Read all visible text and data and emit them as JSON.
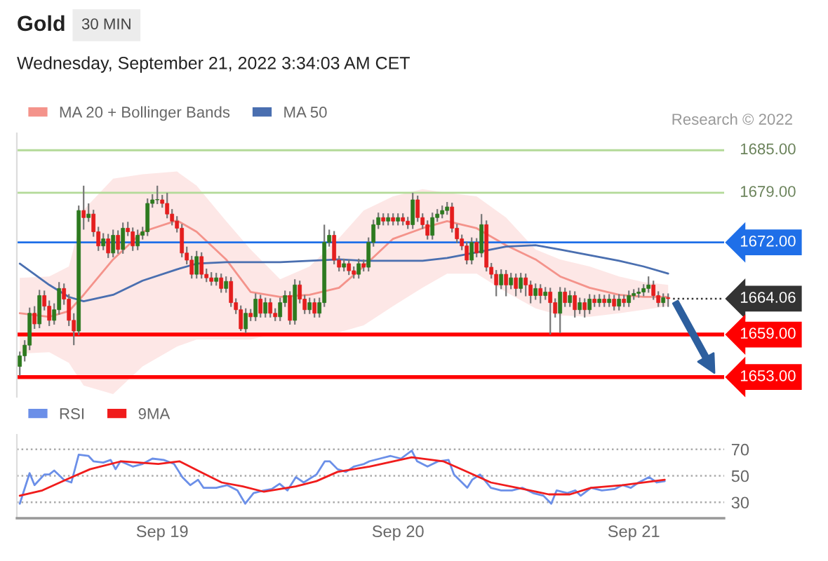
{
  "chart_data": [
    {
      "type": "candlestick",
      "title": "Gold",
      "subtitle": "Wednesday, September 21, 2022 3:34:03 AM CET",
      "annotations": [
        "30 MIN",
        "Research © 2022"
      ],
      "x": [
        "2022-09-18T09:30",
        "2022-09-18T10:00",
        "2022-09-18T10:30",
        "2022-09-18T11:00",
        "2022-09-18T11:30",
        "2022-09-18T12:00",
        "2022-09-18T12:30",
        "2022-09-18T13:00",
        "2022-09-18T13:30",
        "2022-09-18T14:00",
        "2022-09-18T14:30",
        "2022-09-18T15:00",
        "2022-09-18T15:30",
        "2022-09-18T16:00",
        "2022-09-18T16:30",
        "2022-09-18T17:00",
        "2022-09-18T17:30",
        "2022-09-18T18:00",
        "2022-09-18T18:30",
        "2022-09-18T19:00",
        "2022-09-18T19:30",
        "2022-09-18T20:00",
        "2022-09-18T20:30",
        "2022-09-18T21:00",
        "2022-09-18T21:30",
        "2022-09-18T22:00",
        "2022-09-18T22:30",
        "2022-09-18T23:00",
        "2022-09-18T23:30",
        "2022-09-19T00:00",
        "2022-09-19T00:30",
        "2022-09-19T01:00",
        "2022-09-19T01:30",
        "2022-09-19T02:00",
        "2022-09-19T02:30",
        "2022-09-19T03:00",
        "2022-09-19T03:30",
        "2022-09-19T04:00",
        "2022-09-19T04:30",
        "2022-09-19T05:00",
        "2022-09-19T05:30",
        "2022-09-19T06:00",
        "2022-09-19T06:30",
        "2022-09-19T07:00",
        "2022-09-19T07:30",
        "2022-09-19T08:00",
        "2022-09-19T08:30",
        "2022-09-19T09:00",
        "2022-09-19T09:30",
        "2022-09-19T10:00",
        "2022-09-19T10:30",
        "2022-09-19T11:00",
        "2022-09-19T11:30",
        "2022-09-19T12:00",
        "2022-09-19T12:30",
        "2022-09-19T13:00",
        "2022-09-19T13:30",
        "2022-09-19T14:00",
        "2022-09-19T14:30",
        "2022-09-19T15:00",
        "2022-09-19T15:30",
        "2022-09-19T16:00",
        "2022-09-19T16:30",
        "2022-09-19T17:00",
        "2022-09-19T17:30",
        "2022-09-19T18:00",
        "2022-09-19T18:30",
        "2022-09-19T19:00",
        "2022-09-19T19:30",
        "2022-09-19T20:00",
        "2022-09-19T20:30",
        "2022-09-19T21:00",
        "2022-09-19T21:30",
        "2022-09-19T22:00",
        "2022-09-19T22:30",
        "2022-09-19T23:00",
        "2022-09-19T23:30",
        "2022-09-20T00:00",
        "2022-09-20T00:30",
        "2022-09-20T01:00",
        "2022-09-20T01:30",
        "2022-09-20T02:00",
        "2022-09-20T02:30",
        "2022-09-20T03:00",
        "2022-09-20T03:30",
        "2022-09-20T04:00",
        "2022-09-20T04:30",
        "2022-09-20T05:00",
        "2022-09-20T05:30",
        "2022-09-20T06:00",
        "2022-09-20T06:30",
        "2022-09-20T07:00",
        "2022-09-20T07:30",
        "2022-09-20T08:00",
        "2022-09-20T08:30",
        "2022-09-20T09:00",
        "2022-09-20T09:30",
        "2022-09-20T10:00",
        "2022-09-20T10:30",
        "2022-09-20T11:00",
        "2022-09-20T11:30",
        "2022-09-20T12:00",
        "2022-09-20T12:30",
        "2022-09-20T13:00",
        "2022-09-20T13:30",
        "2022-09-20T14:00",
        "2022-09-20T14:30",
        "2022-09-20T15:00",
        "2022-09-20T15:30",
        "2022-09-20T16:00",
        "2022-09-20T16:30",
        "2022-09-20T17:00",
        "2022-09-20T17:30",
        "2022-09-20T18:00",
        "2022-09-20T18:30",
        "2022-09-20T19:00",
        "2022-09-20T19:30",
        "2022-09-20T20:00",
        "2022-09-20T20:30",
        "2022-09-20T21:00",
        "2022-09-20T21:30",
        "2022-09-20T22:00",
        "2022-09-20T22:30",
        "2022-09-20T23:00",
        "2022-09-20T23:30",
        "2022-09-21T00:00",
        "2022-09-21T00:30",
        "2022-09-21T01:00",
        "2022-09-21T01:30",
        "2022-09-21T02:00",
        "2022-09-21T02:30",
        "2022-09-21T03:00",
        "2022-09-21T03:30"
      ],
      "ohlc": [
        [
          1654.5,
          1656.6,
          1653.2,
          1656
        ],
        [
          1656,
          1658.2,
          1655.2,
          1657.5
        ],
        [
          1657.5,
          1662.8,
          1656.8,
          1662
        ],
        [
          1662,
          1663,
          1659.8,
          1660.5
        ],
        [
          1660.5,
          1665.3,
          1659.9,
          1664.5
        ],
        [
          1664.5,
          1665.2,
          1662.4,
          1663
        ],
        [
          1663,
          1663.8,
          1660.2,
          1661
        ],
        [
          1661,
          1663.4,
          1660.4,
          1662.5
        ],
        [
          1662.5,
          1666.4,
          1661.8,
          1665.5
        ],
        [
          1665.5,
          1666.2,
          1663.2,
          1664
        ],
        [
          1664,
          1664.7,
          1660.2,
          1661
        ],
        [
          1661,
          1662,
          1657.5,
          1659.5
        ],
        [
          1659.5,
          1677.2,
          1658.9,
          1676.5
        ],
        [
          1676.5,
          1680,
          1673.8,
          1675.5
        ],
        [
          1675.5,
          1677.5,
          1674.9,
          1676
        ],
        [
          1676,
          1676.6,
          1672.8,
          1673.5
        ],
        [
          1673.5,
          1674.2,
          1670.8,
          1671.5
        ],
        [
          1671.5,
          1673.3,
          1670.9,
          1672.5
        ],
        [
          1672.5,
          1673.2,
          1669.8,
          1670.5
        ],
        [
          1670.5,
          1673.8,
          1669.9,
          1673
        ],
        [
          1673,
          1673.7,
          1670.4,
          1671
        ],
        [
          1671,
          1674.8,
          1670.4,
          1674
        ],
        [
          1674,
          1674.9,
          1672.9,
          1673.5
        ],
        [
          1673.5,
          1674.1,
          1670.8,
          1671.5
        ],
        [
          1671.5,
          1673.8,
          1670.9,
          1673
        ],
        [
          1673,
          1674.2,
          1672.4,
          1673.5
        ],
        [
          1673.5,
          1678.2,
          1672.9,
          1677.5
        ],
        [
          1677.5,
          1678.8,
          1676.9,
          1678
        ],
        [
          1678,
          1680,
          1677.4,
          1678
        ],
        [
          1678,
          1678.7,
          1676.9,
          1677.5
        ],
        [
          1677.5,
          1679,
          1675.4,
          1676
        ],
        [
          1676,
          1676.7,
          1674.4,
          1675
        ],
        [
          1675,
          1675.7,
          1673.4,
          1674
        ],
        [
          1674,
          1674.6,
          1669.9,
          1670.5
        ],
        [
          1670.5,
          1671.4,
          1668.9,
          1669.5
        ],
        [
          1669.5,
          1670.1,
          1666.9,
          1667.5
        ],
        [
          1667.5,
          1670.8,
          1666.9,
          1670
        ],
        [
          1670,
          1670.6,
          1666.9,
          1667.5
        ],
        [
          1667.5,
          1668.3,
          1666.4,
          1667
        ],
        [
          1667,
          1667.8,
          1665.9,
          1666.5
        ],
        [
          1666.5,
          1667.7,
          1665.9,
          1667
        ],
        [
          1667,
          1667.6,
          1664.9,
          1665.5
        ],
        [
          1665.5,
          1667.2,
          1664.9,
          1666.5
        ],
        [
          1666.5,
          1667.1,
          1662.9,
          1663.5
        ],
        [
          1663.5,
          1664.1,
          1661.9,
          1662.5
        ],
        [
          1662.5,
          1663.1,
          1659.5,
          1659.8
        ],
        [
          1659.8,
          1662.7,
          1659.2,
          1662
        ],
        [
          1662,
          1662.6,
          1660.9,
          1661.5
        ],
        [
          1661.5,
          1664.8,
          1660.9,
          1664
        ],
        [
          1664,
          1664.6,
          1661.4,
          1662
        ],
        [
          1662,
          1664.2,
          1661.4,
          1663.5
        ],
        [
          1663.5,
          1664.1,
          1661.4,
          1662
        ],
        [
          1662,
          1662.7,
          1660.9,
          1661.5
        ],
        [
          1661.5,
          1664.2,
          1660.9,
          1663.5
        ],
        [
          1663.5,
          1665.2,
          1662.9,
          1664.5
        ],
        [
          1664.5,
          1665.1,
          1660.4,
          1661
        ],
        [
          1661,
          1666.8,
          1660.4,
          1666
        ],
        [
          1666,
          1666.6,
          1663.4,
          1664
        ],
        [
          1664,
          1664.6,
          1661.9,
          1662.5
        ],
        [
          1662.5,
          1664.2,
          1661.9,
          1663.5
        ],
        [
          1663.5,
          1664.1,
          1661.4,
          1662
        ],
        [
          1662,
          1664.2,
          1661.4,
          1663.5
        ],
        [
          1663.5,
          1674.5,
          1662.9,
          1672
        ],
        [
          1672,
          1673.8,
          1671.4,
          1673
        ],
        [
          1673,
          1673.6,
          1668.9,
          1669.5
        ],
        [
          1669.5,
          1670.1,
          1667.9,
          1668.5
        ],
        [
          1668.5,
          1669.7,
          1667.9,
          1669
        ],
        [
          1669,
          1669.6,
          1667.4,
          1668
        ],
        [
          1668,
          1668.6,
          1666.9,
          1667.5
        ],
        [
          1667.5,
          1669.7,
          1666.9,
          1669
        ],
        [
          1669,
          1669.6,
          1667.9,
          1668.5
        ],
        [
          1668.5,
          1672.7,
          1667.9,
          1672
        ],
        [
          1672,
          1675.2,
          1671.4,
          1674.5
        ],
        [
          1674.5,
          1676.2,
          1673.9,
          1675.5
        ],
        [
          1675.5,
          1676.1,
          1674.4,
          1675
        ],
        [
          1675,
          1676.1,
          1674.4,
          1675.5
        ],
        [
          1675.5,
          1676.1,
          1674.4,
          1675
        ],
        [
          1675,
          1676.1,
          1674.4,
          1675.5
        ],
        [
          1675.5,
          1676.1,
          1674.4,
          1675
        ],
        [
          1675,
          1675.6,
          1673.9,
          1674.5
        ],
        [
          1674.5,
          1679,
          1673.9,
          1678
        ],
        [
          1678,
          1678.6,
          1674.9,
          1675.5
        ],
        [
          1675.5,
          1676.1,
          1673.9,
          1674.5
        ],
        [
          1674.5,
          1675.1,
          1672.4,
          1673
        ],
        [
          1673,
          1676.2,
          1672.4,
          1675.5
        ],
        [
          1675.5,
          1676.7,
          1674.9,
          1676
        ],
        [
          1676,
          1677.2,
          1675.4,
          1676.5
        ],
        [
          1676.5,
          1677.7,
          1675.9,
          1677
        ],
        [
          1677,
          1677.6,
          1673.4,
          1674
        ],
        [
          1674,
          1674.6,
          1671.9,
          1672.5
        ],
        [
          1672.5,
          1673.1,
          1670.9,
          1671.5
        ],
        [
          1671.5,
          1672.1,
          1668.9,
          1669.5
        ],
        [
          1669.5,
          1672.7,
          1668.9,
          1672
        ],
        [
          1672,
          1672.6,
          1669.9,
          1670.5
        ],
        [
          1670.5,
          1676,
          1669.9,
          1674.5
        ],
        [
          1674.5,
          1675.1,
          1667.9,
          1668.5
        ],
        [
          1668.5,
          1669.1,
          1666.9,
          1667.5
        ],
        [
          1667.5,
          1668.1,
          1664.4,
          1666
        ],
        [
          1666,
          1668.2,
          1665.4,
          1667.5
        ],
        [
          1667.5,
          1668.1,
          1664.4,
          1666
        ],
        [
          1666,
          1667.7,
          1665.4,
          1667
        ],
        [
          1667,
          1667.6,
          1664.4,
          1665.5
        ],
        [
          1665.5,
          1667.7,
          1664.9,
          1667
        ],
        [
          1667,
          1667.6,
          1664.4,
          1666
        ],
        [
          1666,
          1666.6,
          1663.4,
          1664.5
        ],
        [
          1664.5,
          1666.2,
          1663.9,
          1665.5
        ],
        [
          1665.5,
          1666.1,
          1663.4,
          1664.5
        ],
        [
          1664.5,
          1665.7,
          1663.9,
          1665
        ],
        [
          1665,
          1665.6,
          1659,
          1663.5
        ],
        [
          1663.5,
          1664.1,
          1661.4,
          1662
        ],
        [
          1662,
          1665.7,
          1659.2,
          1665
        ],
        [
          1665,
          1665.6,
          1662.9,
          1663.5
        ],
        [
          1663.5,
          1665.2,
          1662.9,
          1664.5
        ],
        [
          1664.5,
          1665.1,
          1661.4,
          1662.5
        ],
        [
          1662.5,
          1664.2,
          1661.9,
          1663.5
        ],
        [
          1663.5,
          1664.1,
          1661.4,
          1662.5
        ],
        [
          1662.5,
          1664.7,
          1661.9,
          1664
        ],
        [
          1664,
          1664.6,
          1662.9,
          1663.5
        ],
        [
          1663.5,
          1664.7,
          1662.9,
          1664
        ],
        [
          1664,
          1664.6,
          1662.9,
          1663.5
        ],
        [
          1663.5,
          1664.7,
          1662.9,
          1664
        ],
        [
          1664,
          1664.6,
          1662.4,
          1663
        ],
        [
          1663,
          1664.7,
          1662.4,
          1664
        ],
        [
          1664,
          1664.6,
          1662.9,
          1663.5
        ],
        [
          1663.5,
          1665.2,
          1662.9,
          1664.5
        ],
        [
          1664.5,
          1665.4,
          1663.9,
          1664.8
        ],
        [
          1664.8,
          1665.6,
          1664.2,
          1665
        ],
        [
          1665,
          1666.1,
          1664.4,
          1665.5
        ],
        [
          1665.5,
          1667.2,
          1664.9,
          1666
        ],
        [
          1666,
          1666.6,
          1663.9,
          1664.5
        ],
        [
          1664.5,
          1665.1,
          1662.9,
          1663.5
        ],
        [
          1663.5,
          1664.8,
          1662.9,
          1664.2
        ],
        [
          1664.2,
          1664.8,
          1662.9,
          1664.06
        ]
      ],
      "series": [
        {
          "type": "line",
          "name": "MA 20 + Bollinger Bands",
          "color": "#f4938b",
          "x": [
            "2022-09-18T09:30",
            "2022-09-18T12:30",
            "2022-09-18T14:30",
            "2022-09-18T16:00",
            "2022-09-18T19:00",
            "2022-09-18T22:00",
            "2022-09-19T01:30",
            "2022-09-19T03:30",
            "2022-09-19T06:30",
            "2022-09-19T09:00",
            "2022-09-19T12:00",
            "2022-09-19T15:00",
            "2022-09-19T18:00",
            "2022-09-19T20:30",
            "2022-09-19T23:30",
            "2022-09-20T02:30",
            "2022-09-20T05:00",
            "2022-09-20T08:00",
            "2022-09-20T11:00",
            "2022-09-20T14:00",
            "2022-09-20T16:30",
            "2022-09-20T19:30",
            "2022-09-20T22:30",
            "2022-09-21T01:00",
            "2022-09-21T03:30"
          ],
          "values": [
            1662,
            1661.5,
            1662.3,
            1664.6,
            1669.6,
            1673.5,
            1675.1,
            1673.5,
            1669.6,
            1665,
            1664.3,
            1664.6,
            1665.6,
            1668.6,
            1672.5,
            1674,
            1675,
            1674,
            1671.6,
            1669.6,
            1667.2,
            1665.6,
            1664.6,
            1664.3,
            1664.3
          ],
          "upper": [
            1667,
            1667.2,
            1668.6,
            1676.6,
            1681,
            1681.6,
            1682,
            1680,
            1675,
            1671,
            1666.8,
            1668.6,
            1672.6,
            1676.5,
            1678.5,
            1679.5,
            1679,
            1678.5,
            1675.5,
            1671,
            1669.6,
            1668.6,
            1667.2,
            1666.4,
            1666
          ],
          "lower": [
            1656.3,
            1656.5,
            1655,
            1651.8,
            1650.6,
            1654.5,
            1657.3,
            1658.3,
            1658.3,
            1658.3,
            1659.3,
            1659.3,
            1659.3,
            1660.3,
            1663,
            1665.6,
            1667.6,
            1667.6,
            1665,
            1662.7,
            1661.7,
            1661.5,
            1662,
            1662.5,
            1663
          ]
        },
        {
          "type": "line",
          "name": "MA 50",
          "color": "#4a6fb0",
          "x": [
            "2022-09-18T09:30",
            "2022-09-18T12:30",
            "2022-09-18T14:30",
            "2022-09-18T16:00",
            "2022-09-18T19:00",
            "2022-09-18T22:00",
            "2022-09-19T01:30",
            "2022-09-19T03:30",
            "2022-09-19T06:30",
            "2022-09-19T09:00",
            "2022-09-19T12:00",
            "2022-09-19T15:00",
            "2022-09-19T18:00",
            "2022-09-19T20:30",
            "2022-09-19T23:30",
            "2022-09-20T02:30",
            "2022-09-20T05:00",
            "2022-09-20T08:00",
            "2022-09-20T11:00",
            "2022-09-20T14:00",
            "2022-09-20T16:30",
            "2022-09-20T19:30",
            "2022-09-20T22:30",
            "2022-09-21T01:00",
            "2022-09-21T03:30"
          ],
          "values": [
            1669,
            1666,
            1664.3,
            1663.7,
            1664.6,
            1666.6,
            1668.2,
            1669,
            1669.2,
            1669.2,
            1669.2,
            1669.4,
            1669.6,
            1669.4,
            1669.4,
            1669.4,
            1669.8,
            1670.6,
            1671.4,
            1671.6,
            1671,
            1670.2,
            1669.4,
            1668.6,
            1667.6
          ]
        }
      ],
      "xlim": [
        "2022-09-18T09:12",
        "2022-09-21T09:12"
      ],
      "ylim": [
        1650.2,
        1687.4
      ],
      "grid": false,
      "legend": "top left",
      "ref_lines": [
        {
          "axis": "y",
          "value": 1685,
          "label": "1685.00",
          "color": "#b3da98",
          "line_style": "solid"
        },
        {
          "axis": "y",
          "value": 1679,
          "label": "1679.00",
          "color": "#b3da98",
          "line_style": "solid"
        },
        {
          "axis": "y",
          "value": 1672,
          "label": "1672.00",
          "color": "#1f6fe8",
          "line_style": "solid"
        },
        {
          "axis": "y",
          "value": 1664.06,
          "label": "1664.06",
          "color": "#333333",
          "line_style": "dotted"
        },
        {
          "axis": "y",
          "value": 1659,
          "label": "1659.00",
          "color": "#ff0000",
          "line_style": "solid"
        },
        {
          "axis": "y",
          "value": 1653,
          "label": "1653.00",
          "color": "#ff0000",
          "line_style": "solid"
        }
      ]
    },
    {
      "type": "line",
      "series": [
        {
          "name": "RSI",
          "color": "#6b8fe8",
          "x": [
            "2022-09-18T09:30",
            "2022-09-18T10:30",
            "2022-09-18T11:00",
            "2022-09-18T12:00",
            "2022-09-18T12:30",
            "2022-09-18T13:00",
            "2022-09-18T14:00",
            "2022-09-18T14:45",
            "2022-09-18T15:30",
            "2022-09-18T16:30",
            "2022-09-18T17:00",
            "2022-09-18T18:00",
            "2022-09-18T18:45",
            "2022-09-18T19:15",
            "2022-09-18T19:45",
            "2022-09-18T21:00",
            "2022-09-18T22:00",
            "2022-09-18T23:00",
            "2022-09-19T00:09",
            "2022-09-19T01:12",
            "2022-09-19T02:03",
            "2022-09-19T02:51",
            "2022-09-19T03:39",
            "2022-09-19T04:12",
            "2022-09-19T05:30",
            "2022-09-19T06:36",
            "2022-09-19T07:39",
            "2022-09-19T08:27",
            "2022-09-19T09:18",
            "2022-09-19T10:21",
            "2022-09-19T11:09",
            "2022-09-19T11:57",
            "2022-09-19T12:45",
            "2022-09-19T13:36",
            "2022-09-19T14:24",
            "2022-09-19T15:42",
            "2022-09-19T16:33",
            "2022-09-19T17:03",
            "2022-09-19T17:51",
            "2022-09-19T18:42",
            "2022-09-19T19:30",
            "2022-09-19T20:33",
            "2022-09-19T21:06",
            "2022-09-19T22:09",
            "2022-09-19T23:15",
            "2022-09-20T00:18",
            "2022-09-20T01:24",
            "2022-09-20T01:57",
            "2022-09-20T03:00",
            "2022-09-20T04:06",
            "2022-09-20T05:09",
            "2022-09-20T05:42",
            "2022-09-20T07:03",
            "2022-09-20T07:33",
            "2022-09-20T08:21",
            "2022-09-20T09:27",
            "2022-09-20T10:30",
            "2022-09-20T11:36",
            "2022-09-20T12:39",
            "2022-09-20T13:45",
            "2022-09-20T14:48",
            "2022-09-20T15:36",
            "2022-09-20T16:09",
            "2022-09-20T17:15",
            "2022-09-20T18:03",
            "2022-09-20T18:36",
            "2022-09-20T19:39",
            "2022-09-20T20:45",
            "2022-09-20T22:03",
            "2022-09-20T22:51",
            "2022-09-20T23:42",
            "2022-09-21T00:30",
            "2022-09-21T01:33",
            "2022-09-21T02:21",
            "2022-09-21T03:09"
          ],
          "values": [
            29,
            52,
            43,
            51,
            51,
            54,
            47,
            45,
            66,
            65,
            61,
            60,
            62,
            55,
            61,
            57,
            59,
            63,
            62,
            59,
            49,
            43,
            47,
            41,
            41,
            43,
            39,
            29,
            37,
            39,
            40,
            44,
            39,
            49,
            45,
            51,
            61,
            61,
            55,
            53,
            57,
            59,
            61,
            63,
            65,
            63,
            69,
            61,
            57,
            61,
            62,
            51,
            41,
            47,
            51,
            41,
            39,
            39,
            41,
            37,
            35,
            29,
            39,
            37,
            39,
            35,
            41,
            39,
            40,
            43,
            41,
            45,
            49,
            45,
            46
          ]
        },
        {
          "name": "9MA",
          "color": "#f01c1c",
          "x": [
            "2022-09-18T09:30",
            "2022-09-18T11:48",
            "2022-09-18T14:30",
            "2022-09-18T16:39",
            "2022-09-18T19:51",
            "2022-09-18T23:36",
            "2022-09-19T01:45",
            "2022-09-19T03:54",
            "2022-09-19T06:03",
            "2022-09-19T08:12",
            "2022-09-19T10:21",
            "2022-09-19T13:36",
            "2022-09-19T15:42",
            "2022-09-19T17:51",
            "2022-09-19T21:06",
            "2022-09-20T01:24",
            "2022-09-20T04:36",
            "2022-09-20T06:45",
            "2022-09-20T09:27",
            "2022-09-20T12:09",
            "2022-09-20T15:21",
            "2022-09-20T17:30",
            "2022-09-20T19:39",
            "2022-09-20T22:51",
            "2022-09-21T03:09"
          ],
          "values": [
            35,
            39,
            48,
            55,
            61,
            59,
            61,
            53,
            45,
            42,
            38,
            42,
            46,
            53,
            57,
            64,
            61,
            54,
            45,
            41,
            36,
            36,
            41,
            43,
            47
          ]
        }
      ],
      "xlim": [
        "2022-09-18T09:12",
        "2022-09-21T09:12"
      ],
      "xticks": [
        {
          "value": "2022-09-19",
          "label": "Sep 19"
        },
        {
          "value": "2022-09-20",
          "label": "Sep 20"
        },
        {
          "value": "2022-09-21",
          "label": "Sep 21"
        }
      ],
      "ylim": [
        18,
        81
      ],
      "yticks": [
        30,
        50,
        70
      ],
      "grid": "y",
      "legend": "top left"
    }
  ]
}
